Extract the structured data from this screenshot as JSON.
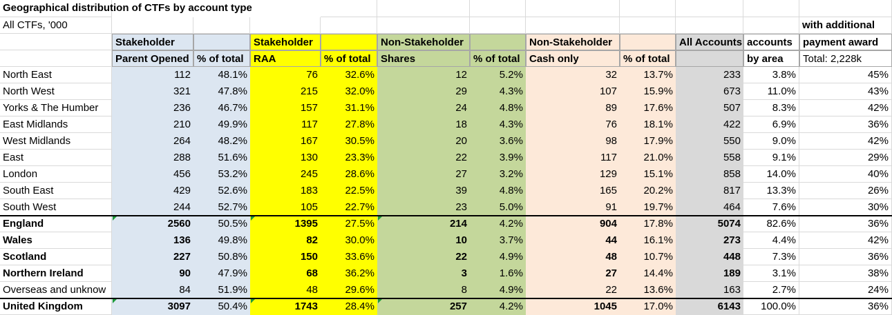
{
  "title": "Geographical distribution of CTFs by account type",
  "subtitle": "All CTFs, '000",
  "column_groups": [
    "Stakeholder",
    "Stakeholder",
    "Non-Stakeholder",
    "Non-Stakeholder",
    "All Accounts",
    "accounts"
  ],
  "columns": [
    "Parent Opened",
    "% of total",
    "RAA",
    "% of total",
    "Shares",
    "% of total",
    "Cash only",
    "% of total",
    "by area"
  ],
  "award_header": [
    "with additional",
    "payment award",
    "Total: 2,228k"
  ],
  "rows": [
    {
      "label": "North East",
      "values": [
        112,
        "48.1%",
        76,
        "32.6%",
        12,
        "5.2%",
        32,
        "13.7%",
        233,
        "3.8%",
        "45%"
      ]
    },
    {
      "label": "North West",
      "values": [
        321,
        "47.8%",
        215,
        "32.0%",
        29,
        "4.3%",
        107,
        "15.9%",
        673,
        "11.0%",
        "43%"
      ]
    },
    {
      "label": "Yorks & The Humber",
      "values": [
        236,
        "46.7%",
        157,
        "31.1%",
        24,
        "4.8%",
        89,
        "17.6%",
        507,
        "8.3%",
        "42%"
      ]
    },
    {
      "label": "East Midlands",
      "values": [
        210,
        "49.9%",
        117,
        "27.8%",
        18,
        "4.3%",
        76,
        "18.1%",
        422,
        "6.9%",
        "36%"
      ]
    },
    {
      "label": "West Midlands",
      "values": [
        264,
        "48.2%",
        167,
        "30.5%",
        20,
        "3.6%",
        98,
        "17.9%",
        550,
        "9.0%",
        "42%"
      ]
    },
    {
      "label": "East",
      "values": [
        288,
        "51.6%",
        130,
        "23.3%",
        22,
        "3.9%",
        117,
        "21.0%",
        558,
        "9.1%",
        "29%"
      ]
    },
    {
      "label": "London",
      "values": [
        456,
        "53.2%",
        245,
        "28.6%",
        27,
        "3.2%",
        129,
        "15.1%",
        858,
        "14.0%",
        "40%"
      ]
    },
    {
      "label": "South East",
      "values": [
        429,
        "52.6%",
        183,
        "22.5%",
        39,
        "4.8%",
        165,
        "20.2%",
        817,
        "13.3%",
        "26%"
      ]
    },
    {
      "label": "South West",
      "values": [
        244,
        "52.7%",
        105,
        "22.7%",
        23,
        "5.0%",
        91,
        "19.7%",
        464,
        "7.6%",
        "30%"
      ]
    },
    {
      "label": "England",
      "values": [
        2560,
        "50.5%",
        1395,
        "27.5%",
        214,
        "4.2%",
        904,
        "17.8%",
        5074,
        "82.6%",
        "36%"
      ]
    },
    {
      "label": "Wales",
      "values": [
        136,
        "49.8%",
        82,
        "30.0%",
        10,
        "3.7%",
        44,
        "16.1%",
        273,
        "4.4%",
        "42%"
      ]
    },
    {
      "label": "Scotland",
      "values": [
        227,
        "50.8%",
        150,
        "33.6%",
        22,
        "4.9%",
        48,
        "10.7%",
        448,
        "7.3%",
        "36%"
      ]
    },
    {
      "label": "Northern Ireland",
      "values": [
        90,
        "47.9%",
        68,
        "36.2%",
        3,
        "1.6%",
        27,
        "14.4%",
        189,
        "3.1%",
        "38%"
      ]
    },
    {
      "label": "Overseas and unknow",
      "values": [
        84,
        "51.9%",
        48,
        "29.6%",
        8,
        "4.9%",
        22,
        "13.6%",
        163,
        "2.7%",
        "24%"
      ]
    },
    {
      "label": "United Kingdom",
      "values": [
        3097,
        "50.4%",
        1743,
        "28.4%",
        257,
        "4.2%",
        1045,
        "17.0%",
        6143,
        "100.0%",
        "36%"
      ]
    }
  ]
}
